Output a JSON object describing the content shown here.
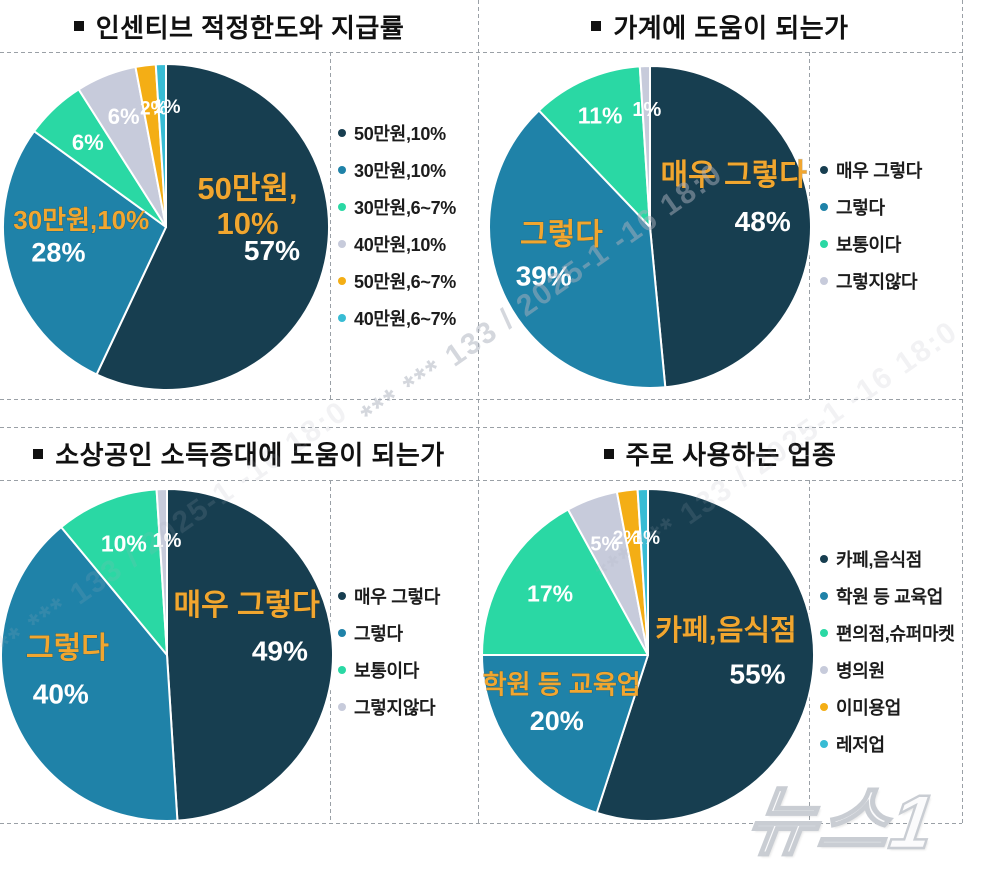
{
  "label_colors": {
    "name": "#f1a62f",
    "pct": "#ffffff"
  },
  "grid_color": "#9aa0a6",
  "watermark": {
    "diagonal_text": "*** *** 133 / 2025-1 -16 18:0",
    "logo_text": "뉴스1"
  },
  "chart_data": [
    {
      "type": "pie",
      "title": "인센티브 적정한도와 지급률",
      "legend_position": "right",
      "slices": [
        {
          "label": "50만원,10%",
          "value": 57,
          "color": "#173e50"
        },
        {
          "label": "30만원,10%",
          "value": 28,
          "color": "#1f82a8"
        },
        {
          "label": "30만원,6~7%",
          "value": 6,
          "color": "#2ad8a4"
        },
        {
          "label": "40만원,10%",
          "value": 6,
          "color": "#c7cbdb"
        },
        {
          "label": "50만원,6~7%",
          "value": 2,
          "color": "#f4ae15"
        },
        {
          "label": "40만원,6~7%",
          "value": 1,
          "color": "#38bcd4"
        }
      ],
      "inside_labels": [
        {
          "text": "50만원,\n10%",
          "style": "name",
          "pos": [
            0.5,
            -0.22
          ],
          "size": 31
        },
        {
          "text": "57%",
          "style": "pct",
          "pos": [
            0.65,
            0.16
          ],
          "size": 28
        },
        {
          "text": "30만원,10%",
          "style": "name",
          "pos": [
            -0.52,
            -0.03
          ],
          "size": 26
        },
        {
          "text": "28%",
          "style": "pct",
          "pos": [
            -0.66,
            0.17
          ],
          "size": 27
        },
        {
          "text": "6%",
          "style": "pct",
          "pos": [
            -0.48,
            -0.51
          ],
          "size": 22
        },
        {
          "text": "6%",
          "style": "pct",
          "pos": [
            -0.26,
            -0.67
          ],
          "size": 22
        },
        {
          "text": "2%",
          "style": "pct",
          "pos": [
            -0.075,
            -0.72
          ],
          "size": 19
        },
        {
          "text": "1%",
          "style": "pct",
          "pos": [
            0.005,
            -0.73
          ],
          "size": 19
        }
      ]
    },
    {
      "type": "pie",
      "title": "가계에 도움이 되는가",
      "legend_position": "right",
      "slices": [
        {
          "label": "매우 그렇다",
          "value": 48,
          "color": "#173e50"
        },
        {
          "label": "그렇다",
          "value": 39,
          "color": "#1f82a8"
        },
        {
          "label": "보통이다",
          "value": 11,
          "color": "#2ad8a4"
        },
        {
          "label": "그렇지않다",
          "value": 1,
          "color": "#c7cbdb"
        }
      ],
      "inside_labels": [
        {
          "text": "매우 그렇다",
          "style": "name",
          "pos": [
            0.52,
            -0.31
          ],
          "size": 30
        },
        {
          "text": "48%",
          "style": "pct",
          "pos": [
            0.7,
            -0.02
          ],
          "size": 28
        },
        {
          "text": "그렇다",
          "style": "name",
          "pos": [
            -0.55,
            0.06
          ],
          "size": 30
        },
        {
          "text": "39%",
          "style": "pct",
          "pos": [
            -0.66,
            0.32
          ],
          "size": 28
        },
        {
          "text": "11%",
          "style": "pct",
          "pos": [
            -0.31,
            -0.68
          ],
          "size": 23
        },
        {
          "text": "1%",
          "style": "pct",
          "pos": [
            -0.02,
            -0.72
          ],
          "size": 20
        }
      ]
    },
    {
      "type": "pie",
      "title": "소상공인 소득증대에 도움이 되는가",
      "legend_position": "right",
      "slices": [
        {
          "label": "매우 그렇다",
          "value": 49,
          "color": "#173e50"
        },
        {
          "label": "그렇다",
          "value": 40,
          "color": "#1f82a8"
        },
        {
          "label": "보통이다",
          "value": 10,
          "color": "#2ad8a4"
        },
        {
          "label": "그렇지않다",
          "value": 1,
          "color": "#c7cbdb"
        }
      ],
      "inside_labels": [
        {
          "text": "매우 그렇다",
          "style": "name",
          "pos": [
            0.48,
            -0.29
          ],
          "size": 30
        },
        {
          "text": "49%",
          "style": "pct",
          "pos": [
            0.68,
            -0.01
          ],
          "size": 28
        },
        {
          "text": "그렇다",
          "style": "name",
          "pos": [
            -0.6,
            -0.03
          ],
          "size": 30
        },
        {
          "text": "40%",
          "style": "pct",
          "pos": [
            -0.64,
            0.25
          ],
          "size": 28
        },
        {
          "text": "10%",
          "style": "pct",
          "pos": [
            -0.26,
            -0.66
          ],
          "size": 23
        },
        {
          "text": "1%",
          "style": "pct",
          "pos": [
            0.0,
            -0.68
          ],
          "size": 20
        }
      ]
    },
    {
      "type": "pie",
      "title": "주로 사용하는 업종",
      "legend_position": "right",
      "slices": [
        {
          "label": "카페,음식점",
          "value": 55,
          "color": "#173e50"
        },
        {
          "label": "학원 등 교육업",
          "value": 20,
          "color": "#1f82a8"
        },
        {
          "label": "편의점,슈퍼마켓",
          "value": 17,
          "color": "#2ad8a4"
        },
        {
          "label": "병의원",
          "value": 5,
          "color": "#c7cbdb"
        },
        {
          "label": "이미용업",
          "value": 2,
          "color": "#f4ae15"
        },
        {
          "label": "레저업",
          "value": 1,
          "color": "#38bcd4"
        }
      ],
      "inside_labels": [
        {
          "text": "카페,음식점",
          "style": "name",
          "pos": [
            0.47,
            -0.14
          ],
          "size": 29
        },
        {
          "text": "55%",
          "style": "pct",
          "pos": [
            0.66,
            0.13
          ],
          "size": 28
        },
        {
          "text": "학원 등 교육업",
          "style": "name",
          "pos": [
            -0.52,
            0.19
          ],
          "size": 26
        },
        {
          "text": "20%",
          "style": "pct",
          "pos": [
            -0.55,
            0.41
          ],
          "size": 27
        },
        {
          "text": "17%",
          "style": "pct",
          "pos": [
            -0.59,
            -0.36
          ],
          "size": 23
        },
        {
          "text": "5%",
          "style": "pct",
          "pos": [
            -0.26,
            -0.66
          ],
          "size": 20
        },
        {
          "text": "2%",
          "style": "pct",
          "pos": [
            -0.13,
            -0.7
          ],
          "size": 19
        },
        {
          "text": "1%",
          "style": "pct",
          "pos": [
            -0.01,
            -0.7
          ],
          "size": 19
        }
      ]
    }
  ]
}
